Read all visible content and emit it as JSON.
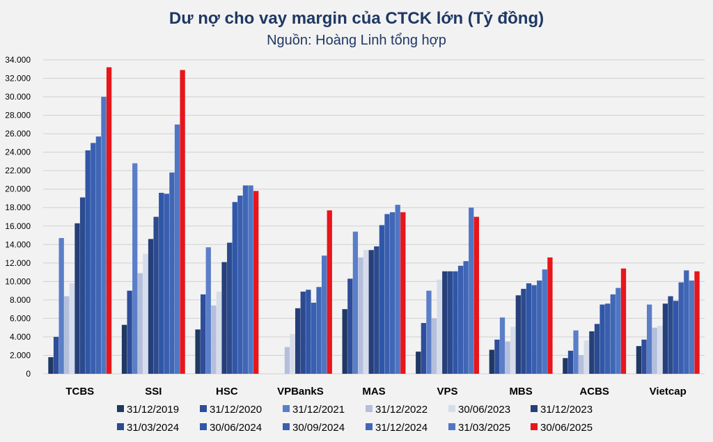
{
  "chart_data": {
    "type": "bar",
    "title": "Dư nợ cho vay margin của CTCK lớn (Tỷ đồng)",
    "subtitle": "Nguồn: Hoàng Linh tổng hợp",
    "xlabel": "",
    "ylabel": "",
    "ylim": [
      0,
      34000
    ],
    "yticks": [
      0,
      2000,
      4000,
      6000,
      8000,
      10000,
      12000,
      14000,
      16000,
      18000,
      20000,
      22000,
      24000,
      26000,
      28000,
      30000,
      32000,
      34000
    ],
    "ytick_labels": [
      "0",
      "2.000",
      "4.000",
      "6.000",
      "8.000",
      "10.000",
      "12.000",
      "14.000",
      "16.000",
      "18.000",
      "20.000",
      "22.000",
      "24.000",
      "26.000",
      "28.000",
      "30.000",
      "32.000",
      "34.000"
    ],
    "grid": true,
    "legend_position": "bottom",
    "categories": [
      "TCBS",
      "SSI",
      "HSC",
      "VPBankS",
      "MAS",
      "VPS",
      "MBS",
      "ACBS",
      "Vietcap"
    ],
    "series": [
      {
        "name": "31/12/2019",
        "color": "#1f3864",
        "values": [
          1800,
          5300,
          4800,
          0,
          7000,
          2400,
          2600,
          1700,
          3000
        ]
      },
      {
        "name": "31/12/2020",
        "color": "#2e4d9a",
        "values": [
          4000,
          9000,
          8600,
          0,
          10300,
          5500,
          3700,
          2500,
          3700
        ]
      },
      {
        "name": "31/12/2021",
        "color": "#5b7ec8",
        "values": [
          14700,
          22800,
          13700,
          0,
          15400,
          9000,
          6100,
          4700,
          7500
        ]
      },
      {
        "name": "31/12/2022",
        "color": "#b4bfdc",
        "values": [
          8400,
          10900,
          7400,
          2900,
          12600,
          6000,
          3500,
          2000,
          5000
        ]
      },
      {
        "name": "30/06/2023",
        "color": "#d6dcea",
        "values": [
          9800,
          13000,
          8900,
          4300,
          13400,
          10200,
          5100,
          3600,
          5200
        ]
      },
      {
        "name": "31/12/2023",
        "color": "#263f7a",
        "values": [
          16300,
          14600,
          12100,
          7100,
          13400,
          11100,
          8500,
          4600,
          7600
        ]
      },
      {
        "name": "31/03/2024",
        "color": "#2c4a8e",
        "values": [
          19100,
          17000,
          14200,
          8900,
          13800,
          11100,
          9200,
          5400,
          8400
        ]
      },
      {
        "name": "30/06/2024",
        "color": "#2f56a8",
        "values": [
          24200,
          19600,
          18600,
          9100,
          16100,
          11100,
          9800,
          7500,
          7900
        ]
      },
      {
        "name": "30/09/2024",
        "color": "#3a5fb0",
        "values": [
          25000,
          19500,
          19300,
          7700,
          17300,
          11700,
          9600,
          7600,
          9900
        ]
      },
      {
        "name": "31/12/2024",
        "color": "#4067b5",
        "values": [
          25700,
          21800,
          20400,
          9400,
          17500,
          12200,
          10100,
          8600,
          11200
        ]
      },
      {
        "name": "31/03/2025",
        "color": "#4f76c4",
        "values": [
          30000,
          27000,
          20400,
          12800,
          18300,
          18000,
          11300,
          9300,
          10100
        ]
      },
      {
        "name": "30/06/2025",
        "color": "#e8151b",
        "values": [
          33200,
          32900,
          19800,
          17700,
          17500,
          17000,
          12600,
          11400,
          11100
        ]
      }
    ]
  }
}
